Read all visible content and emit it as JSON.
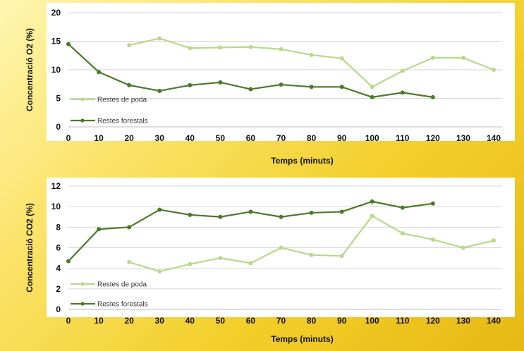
{
  "chart_data": [
    {
      "type": "line",
      "title": "",
      "xlabel": "Temps (minuts)",
      "ylabel": "Concentració O2 (%)",
      "ylim": [
        0,
        20
      ],
      "yticks": [
        0,
        5,
        10,
        15,
        20
      ],
      "xticks": [
        0,
        10,
        20,
        30,
        40,
        50,
        60,
        70,
        80,
        90,
        100,
        110,
        120,
        130,
        140
      ],
      "grid": true,
      "legend": "bottom-left",
      "series": [
        {
          "name": "Restes de poda",
          "color": "#b7d98a",
          "x": [
            20,
            30,
            40,
            50,
            60,
            70,
            80,
            90,
            100,
            110,
            120,
            130,
            140
          ],
          "y": [
            14.3,
            15.5,
            13.8,
            13.9,
            14.0,
            13.6,
            12.6,
            12.0,
            7.0,
            9.8,
            12.1,
            12.1,
            10.0
          ]
        },
        {
          "name": "Restes forestals",
          "color": "#4a7a2a",
          "x": [
            0,
            10,
            20,
            30,
            40,
            50,
            60,
            70,
            80,
            90,
            100,
            110,
            120
          ],
          "y": [
            14.5,
            9.6,
            7.3,
            6.3,
            7.3,
            7.8,
            6.6,
            7.4,
            7.0,
            7.0,
            5.2,
            6.0,
            5.2
          ]
        }
      ]
    },
    {
      "type": "line",
      "title": "",
      "xlabel": "Temps (minuts)",
      "ylabel": "Concentració CO2 (%)",
      "ylim": [
        0,
        12
      ],
      "yticks": [
        0,
        2,
        4,
        6,
        8,
        10,
        12
      ],
      "xticks": [
        0,
        10,
        20,
        30,
        40,
        50,
        60,
        70,
        80,
        90,
        100,
        110,
        120,
        130,
        140
      ],
      "grid": true,
      "legend": "bottom-left",
      "series": [
        {
          "name": "Restes de poda",
          "color": "#b7d98a",
          "x": [
            20,
            30,
            40,
            50,
            60,
            70,
            80,
            90,
            100,
            110,
            120,
            130,
            140
          ],
          "y": [
            4.6,
            3.7,
            4.4,
            5.0,
            4.5,
            6.0,
            5.3,
            5.2,
            9.1,
            7.4,
            6.8,
            6.0,
            6.7
          ]
        },
        {
          "name": "Restes forestals",
          "color": "#4a7a2a",
          "x": [
            0,
            10,
            20,
            30,
            40,
            50,
            60,
            70,
            80,
            90,
            100,
            110,
            120
          ],
          "y": [
            4.7,
            7.8,
            8.0,
            9.7,
            9.2,
            9.0,
            9.5,
            9.0,
            9.4,
            9.5,
            10.5,
            9.9,
            10.3
          ]
        }
      ]
    }
  ]
}
